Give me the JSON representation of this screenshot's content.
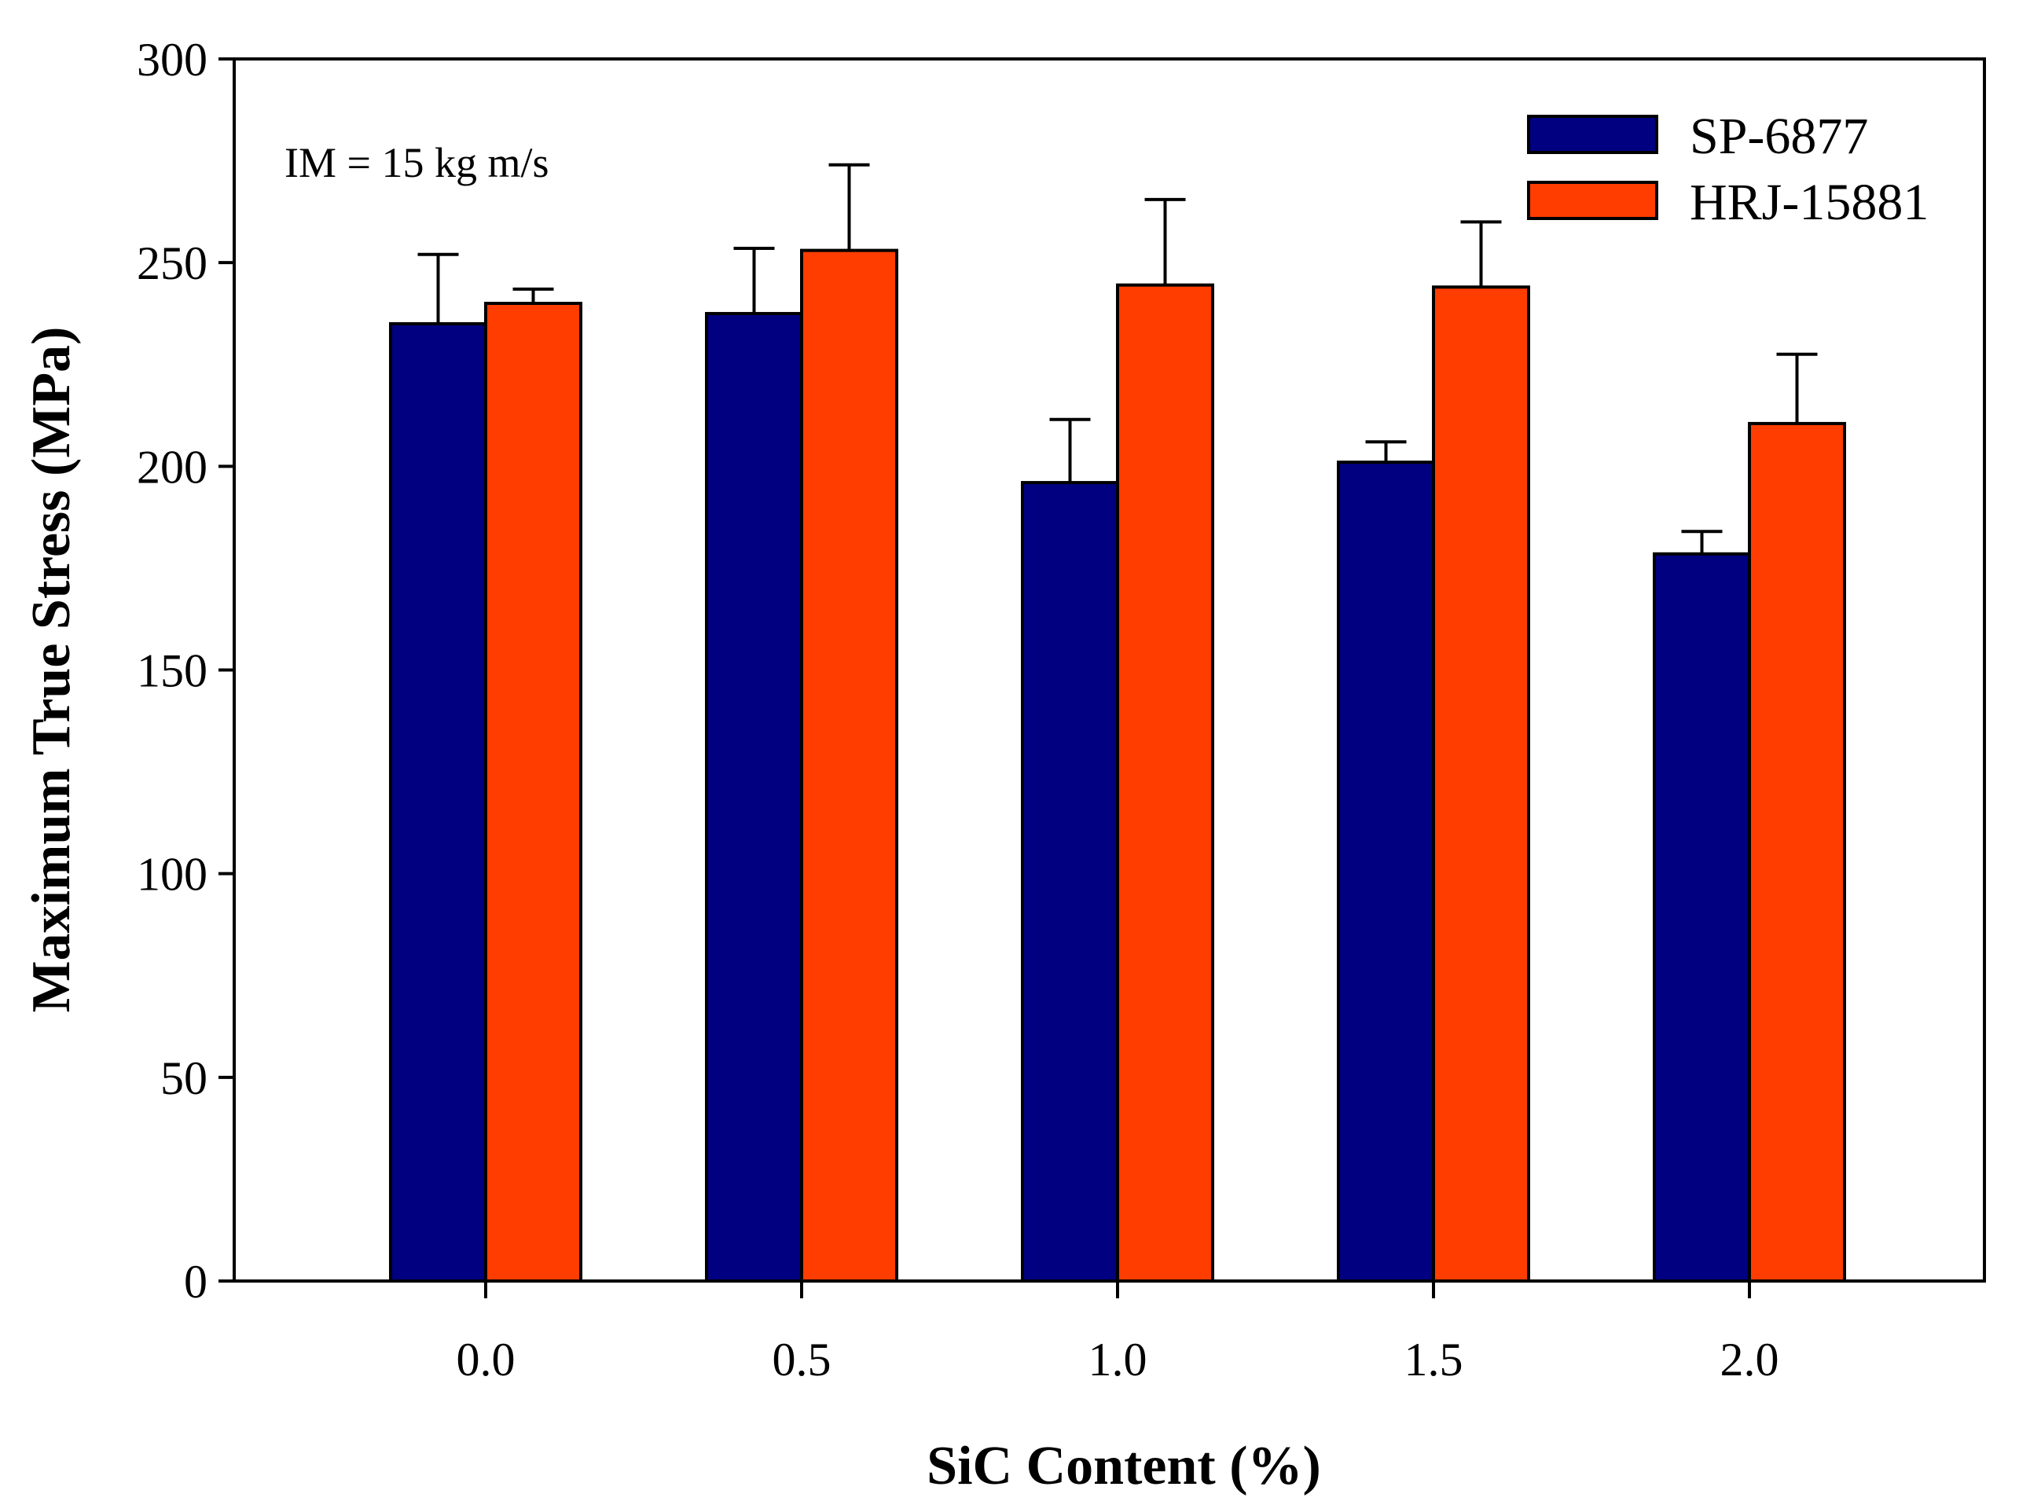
{
  "chart_data": {
    "type": "bar",
    "title": "",
    "xlabel": "SiC Content (%)",
    "ylabel": "Maximum True Stress (MPa)",
    "categories": [
      "0.0",
      "0.5",
      "1.0",
      "1.5",
      "2.0"
    ],
    "ylim": [
      0,
      300
    ],
    "yticks": [
      0,
      50,
      100,
      150,
      200,
      250,
      300
    ],
    "ytick_labels": [
      "0",
      "50",
      "100",
      "150",
      "200",
      "250",
      "300"
    ],
    "grid": false,
    "legend_position": "top-right",
    "annotation": "IM = 15 kg m/s",
    "series": [
      {
        "name": "SP-6877",
        "color": "#000080",
        "values": [
          235,
          237.5,
          196,
          201,
          178.5
        ],
        "error_plus": [
          17,
          16,
          15.5,
          5,
          5.5
        ]
      },
      {
        "name": "HRJ-15881",
        "color": "#FF3D00",
        "values": [
          240,
          253,
          244.5,
          244,
          210.5
        ],
        "error_plus": [
          3.5,
          21,
          21,
          16,
          17
        ]
      }
    ]
  }
}
